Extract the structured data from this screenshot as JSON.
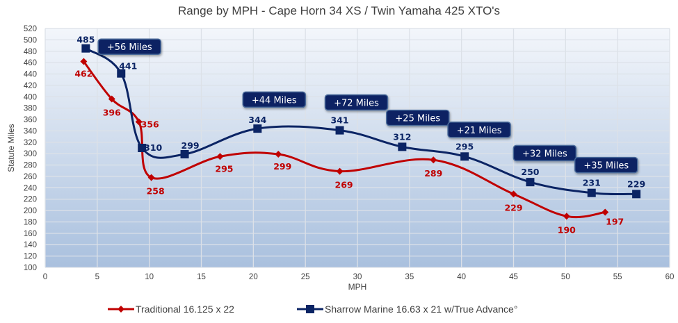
{
  "chart_data": {
    "type": "line",
    "title": "Range by MPH - Cape Horn 34 XS / Twin Yamaha 425 XTO's",
    "xlabel": "MPH",
    "ylabel": "Statute Miles",
    "xlim": [
      0,
      60
    ],
    "ylim": [
      100,
      520
    ],
    "xticks": [
      0,
      5,
      10,
      15,
      20,
      25,
      30,
      35,
      40,
      45,
      50,
      55,
      60
    ],
    "yticks": [
      100,
      120,
      140,
      160,
      180,
      200,
      220,
      240,
      260,
      280,
      300,
      320,
      340,
      360,
      380,
      400,
      420,
      440,
      460,
      480,
      500,
      520
    ],
    "grid": true,
    "legend": "bottom",
    "series": [
      {
        "name": "Traditional 16.125 x 22",
        "color": "#C00000",
        "marker": "diamond",
        "x": [
          3.7,
          6.4,
          9.0,
          10.2,
          16.8,
          22.4,
          28.3,
          37.3,
          45.0,
          50.1,
          53.8
        ],
        "y": [
          462,
          396,
          356,
          258,
          295,
          299,
          269,
          289,
          229,
          190,
          197
        ]
      },
      {
        "name": "Sharrow Marine 16.63 x 21 w/True Advance°",
        "color": "#0B2464",
        "marker": "square",
        "x": [
          3.9,
          7.3,
          9.3,
          13.4,
          20.4,
          28.3,
          34.3,
          40.3,
          46.6,
          52.5,
          56.8
        ],
        "y": [
          485,
          441,
          310,
          299,
          344,
          341,
          312,
          295,
          250,
          231,
          229
        ]
      }
    ],
    "annotations": [
      {
        "text": "+56 Miles",
        "x": 8.1,
        "y": 488
      },
      {
        "text": "+44 Miles",
        "x": 22.0,
        "y": 395
      },
      {
        "text": "+72 Miles",
        "x": 29.9,
        "y": 390
      },
      {
        "text": "+25 Miles",
        "x": 35.8,
        "y": 363
      },
      {
        "text": "+21 Miles",
        "x": 41.7,
        "y": 342
      },
      {
        "text": "+32 Miles",
        "x": 48.0,
        "y": 301
      },
      {
        "text": "+35 Miles",
        "x": 53.9,
        "y": 280
      }
    ]
  }
}
